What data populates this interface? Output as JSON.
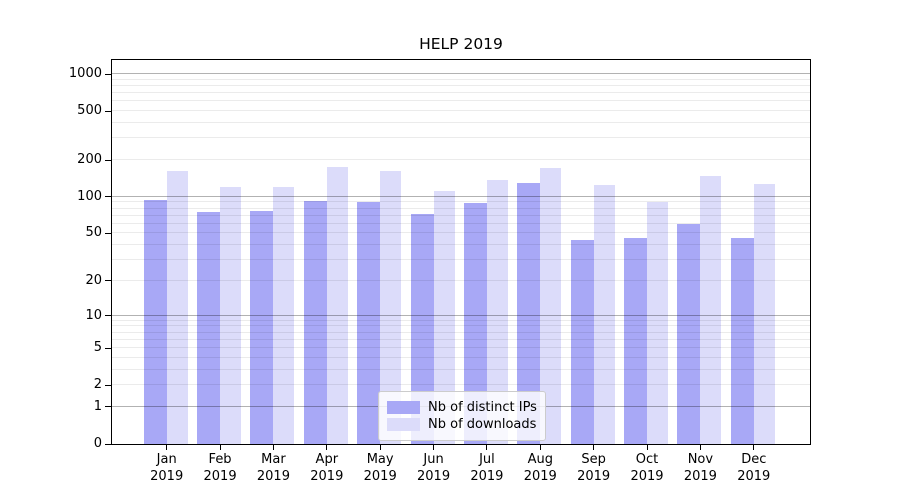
{
  "chart_data": {
    "type": "bar",
    "title": "HELP 2019",
    "categories": [
      "Jan",
      "Feb",
      "Mar",
      "Apr",
      "May",
      "Jun",
      "Jul",
      "Aug",
      "Sep",
      "Oct",
      "Nov",
      "Dec"
    ],
    "x_year_label": "2019",
    "series": [
      {
        "name": "Nb of distinct IPs",
        "color": "#a8a8f6",
        "values": [
          95,
          75,
          76,
          92,
          90,
          72,
          89,
          129,
          44,
          46,
          60,
          46
        ]
      },
      {
        "name": "Nb of downloads",
        "color": "#dcdcfa",
        "values": [
          164,
          120,
          120,
          177,
          164,
          112,
          138,
          171,
          124,
          90,
          148,
          127
        ]
      }
    ],
    "y_scale": "log1p",
    "y_ticks": [
      0,
      1,
      2,
      5,
      10,
      20,
      50,
      100,
      200,
      500,
      1000
    ],
    "ylim": [
      0,
      1300
    ],
    "grid": true,
    "legend_position": "lower center"
  }
}
